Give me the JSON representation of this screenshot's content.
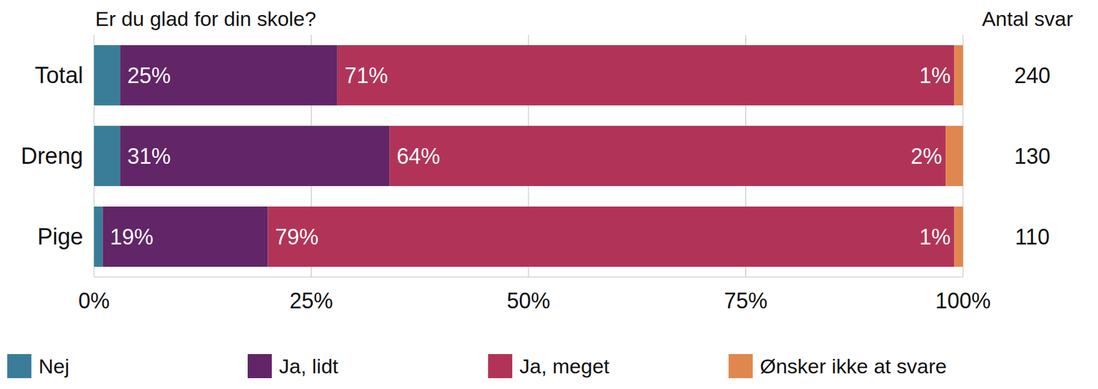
{
  "chart_data": {
    "type": "bar",
    "orientation": "horizontal",
    "stacked": true,
    "title": "Er du glad for din skole?",
    "categories": [
      "Total",
      "Dreng",
      "Pige"
    ],
    "series": [
      {
        "name": "Nej",
        "color": "#3a7d99",
        "values": [
          3,
          3,
          1
        ],
        "data_labels": false
      },
      {
        "name": "Ja, lidt",
        "color": "#622567",
        "values": [
          25,
          31,
          19
        ],
        "value_labels": [
          "25%",
          "31%",
          "19%"
        ]
      },
      {
        "name": "Ja, meget",
        "color": "#b23358",
        "values": [
          71,
          64,
          79
        ],
        "value_labels": [
          "71%",
          "64%",
          "79%"
        ]
      },
      {
        "name": "Ønsker ikke at svare",
        "color": "#e0874f",
        "values": [
          1,
          2,
          1
        ],
        "value_labels": [
          "1%",
          "2%",
          "1%"
        ]
      }
    ],
    "xlim": [
      0,
      100
    ],
    "xticks": [
      {
        "value": 0,
        "label": "0%"
      },
      {
        "value": 25,
        "label": "25%"
      },
      {
        "value": 50,
        "label": "50%"
      },
      {
        "value": 75,
        "label": "75%"
      },
      {
        "value": 100,
        "label": "100%"
      }
    ],
    "grid": true,
    "data_labels": true,
    "legend": "bottom",
    "counts_label": "Antal svar",
    "counts": [
      240,
      130,
      110
    ]
  }
}
